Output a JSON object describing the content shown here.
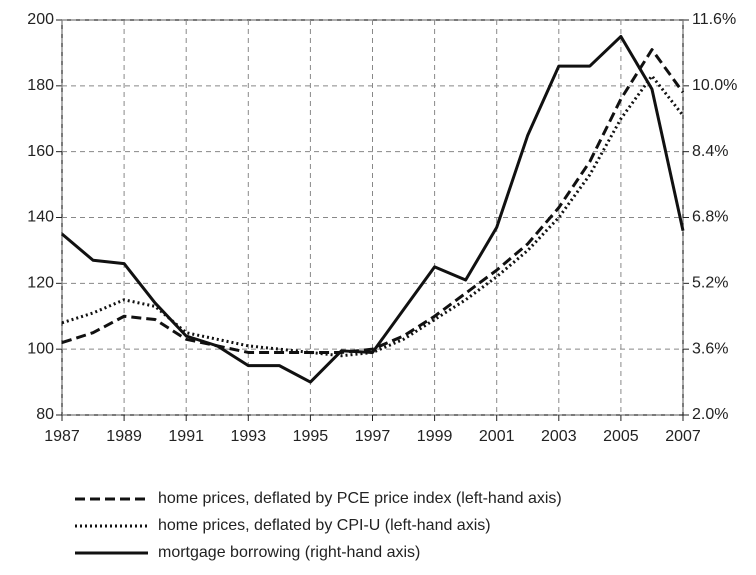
{
  "chart_data": {
    "type": "line",
    "x": [
      1987,
      1988,
      1989,
      1990,
      1991,
      1992,
      1993,
      1994,
      1995,
      1996,
      1997,
      1998,
      1999,
      2000,
      2001,
      2002,
      2003,
      2004,
      2005,
      2006,
      2007
    ],
    "series": [
      {
        "name": "home prices, deflated by PCE price index (left-hand axis)",
        "color": "#111111",
        "style": "dashed",
        "values": [
          102,
          105,
          110,
          109,
          103,
          101,
          99,
          99,
          99,
          99,
          100,
          104,
          110,
          117,
          124,
          132,
          143,
          157,
          176,
          191,
          178
        ]
      },
      {
        "name": "home prices, deflated by CPI-U (left-hand axis)",
        "color": "#111111",
        "style": "dotted",
        "values": [
          108,
          111,
          115,
          113,
          105,
          103,
          101,
          100,
          99,
          98,
          99,
          103,
          109,
          115,
          122,
          130,
          140,
          153,
          170,
          183,
          171
        ]
      },
      {
        "name": "mortgage borrowing (right-hand axis)",
        "color": "#111111",
        "style": "solid",
        "axis": "y2",
        "values": [
          6.4,
          5.76,
          5.68,
          4.72,
          3.92,
          3.68,
          3.2,
          3.2,
          2.8,
          3.56,
          3.52,
          4.56,
          5.6,
          5.28,
          6.56,
          8.8,
          10.48,
          10.48,
          11.2,
          9.92,
          6.48
        ]
      }
    ],
    "xlim": [
      1987,
      2007
    ],
    "xticks": [
      1987,
      1989,
      1991,
      1993,
      1995,
      1997,
      1999,
      2001,
      2003,
      2005,
      2007
    ],
    "ylim": [
      80,
      200
    ],
    "yticks": [
      80,
      100,
      120,
      140,
      160,
      180,
      200
    ],
    "y2lim": [
      2.0,
      11.6
    ],
    "y2ticks": [
      {
        "value": 2.0,
        "label": "2.0%"
      },
      {
        "value": 3.6,
        "label": "3.6%"
      },
      {
        "value": 5.2,
        "label": "5.2%"
      },
      {
        "value": 6.8,
        "label": "6.8%"
      },
      {
        "value": 8.4,
        "label": "8.4%"
      },
      {
        "value": 10.0,
        "label": "10.0%"
      },
      {
        "value": 11.6,
        "label": "11.6%"
      }
    ],
    "grid": true
  }
}
